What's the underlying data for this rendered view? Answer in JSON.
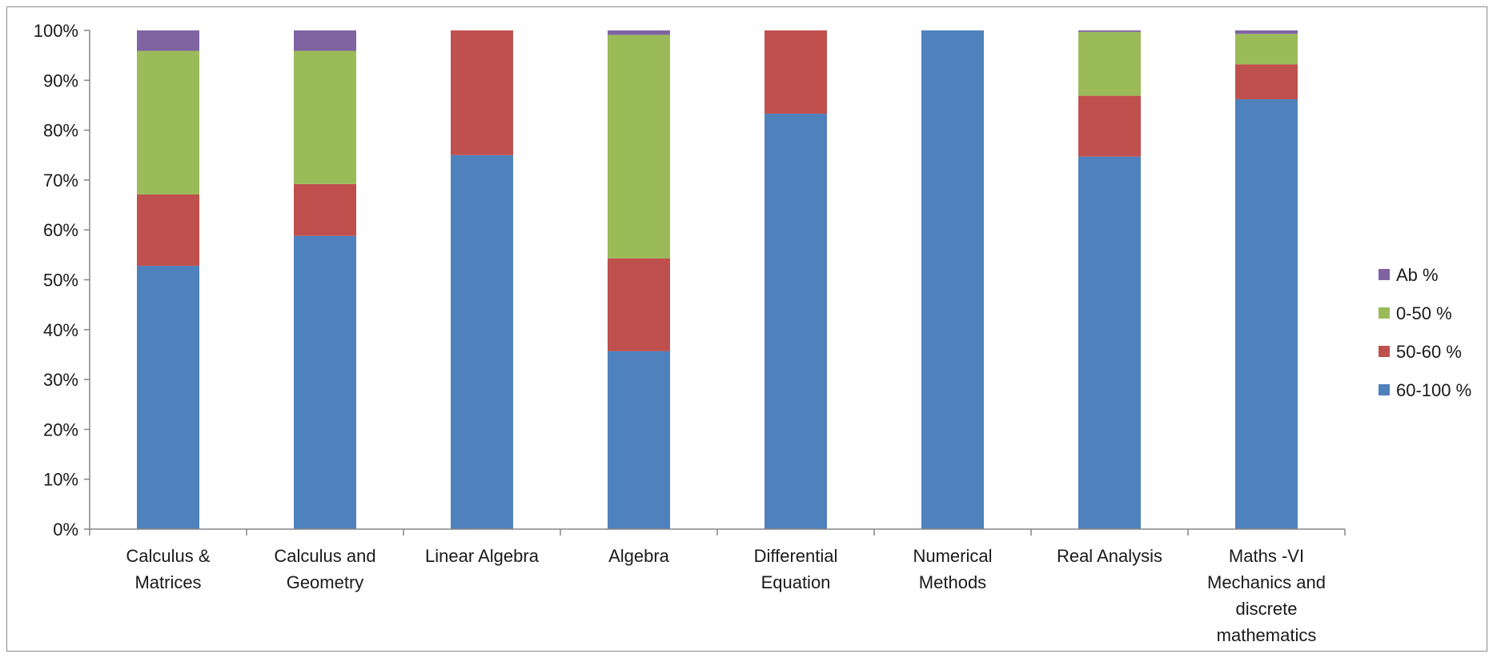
{
  "chart_data": {
    "type": "bar",
    "stacked": true,
    "categories": [
      [
        "Calculus &",
        "Matrices"
      ],
      [
        "Calculus and",
        "Geometry"
      ],
      [
        "Linear Algebra"
      ],
      [
        "Algebra"
      ],
      [
        "Differential",
        "Equation"
      ],
      [
        "Numerical",
        "Methods"
      ],
      [
        "Real Analysis"
      ],
      [
        "Maths -VI",
        "Mechanics and",
        "discrete",
        "mathematics"
      ]
    ],
    "series": [
      {
        "name": "60-100 %",
        "color": "#4F81BD",
        "values": [
          52.8,
          58.8,
          75.0,
          35.7,
          83.3,
          100.0,
          74.7,
          86.2
        ]
      },
      {
        "name": "50-60 %",
        "color": "#C0504D",
        "values": [
          14.3,
          10.4,
          25.0,
          18.6,
          16.7,
          0.0,
          12.2,
          7.0
        ]
      },
      {
        "name": "0-50 %",
        "color": "#9BBB59",
        "values": [
          28.8,
          26.7,
          0.0,
          44.8,
          0.0,
          0.0,
          12.8,
          6.1
        ]
      },
      {
        "name": "Ab %",
        "color": "#8064A2",
        "values": [
          4.1,
          4.1,
          0.0,
          0.9,
          0.0,
          0.0,
          0.3,
          0.7
        ]
      }
    ],
    "yticks": [
      "0%",
      "10%",
      "20%",
      "30%",
      "40%",
      "50%",
      "60%",
      "70%",
      "80%",
      "90%",
      "100%"
    ],
    "ylim": [
      0,
      100
    ],
    "legend_position": "right",
    "legend_order": [
      "Ab %",
      "0-50 %",
      "50-60 %",
      "60-100 %"
    ],
    "grid": false,
    "title": "",
    "xlabel": "",
    "ylabel": ""
  }
}
